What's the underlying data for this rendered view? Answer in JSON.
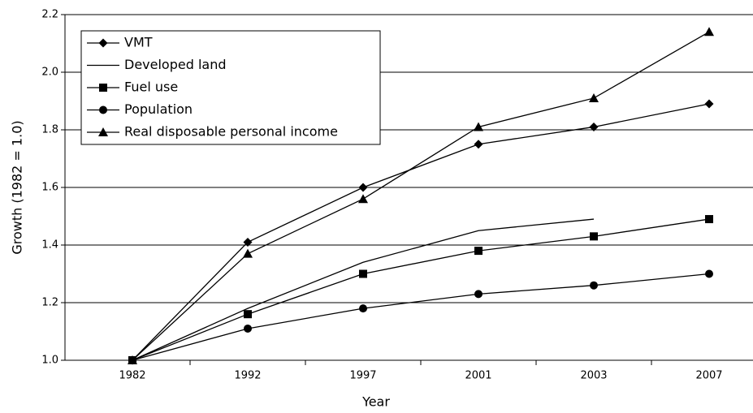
{
  "chart_data": {
    "type": "line",
    "x_label": "Year",
    "y_label": "Growth (1982 = 1.0)",
    "categories": [
      "1982",
      "1992",
      "1997",
      "2001",
      "2003",
      "2007"
    ],
    "series": [
      {
        "name": "VMT",
        "color": "#000000",
        "marker": "diamond",
        "values": [
          1.0,
          1.41,
          1.6,
          1.75,
          1.81,
          1.89
        ]
      },
      {
        "name": "Developed land",
        "color": "#000000",
        "marker": "none",
        "values": [
          1.0,
          1.18,
          1.34,
          1.45,
          1.49,
          null
        ]
      },
      {
        "name": "Fuel use",
        "color": "#000000",
        "marker": "square",
        "values": [
          1.0,
          1.16,
          1.3,
          1.38,
          1.43,
          1.49
        ]
      },
      {
        "name": "Population",
        "color": "#000000",
        "marker": "circle",
        "values": [
          1.0,
          1.11,
          1.18,
          1.23,
          1.26,
          1.3
        ]
      },
      {
        "name": "Real disposable personal income",
        "color": "#000000",
        "marker": "triangle",
        "values": [
          1.0,
          1.37,
          1.56,
          1.81,
          1.91,
          2.14
        ]
      }
    ],
    "ylim": [
      1.0,
      2.2
    ],
    "yticks": [
      {
        "value": 1.0,
        "label": "1.0"
      },
      {
        "value": 1.2,
        "label": "1.2"
      },
      {
        "value": 1.4,
        "label": "1.4"
      },
      {
        "value": 1.6,
        "label": "1.6"
      },
      {
        "value": 1.8,
        "label": "1.8"
      },
      {
        "value": 2.0,
        "label": "2.0"
      },
      {
        "value": 2.2,
        "label": "2.2"
      }
    ],
    "grid": true,
    "legend": "upper left"
  }
}
